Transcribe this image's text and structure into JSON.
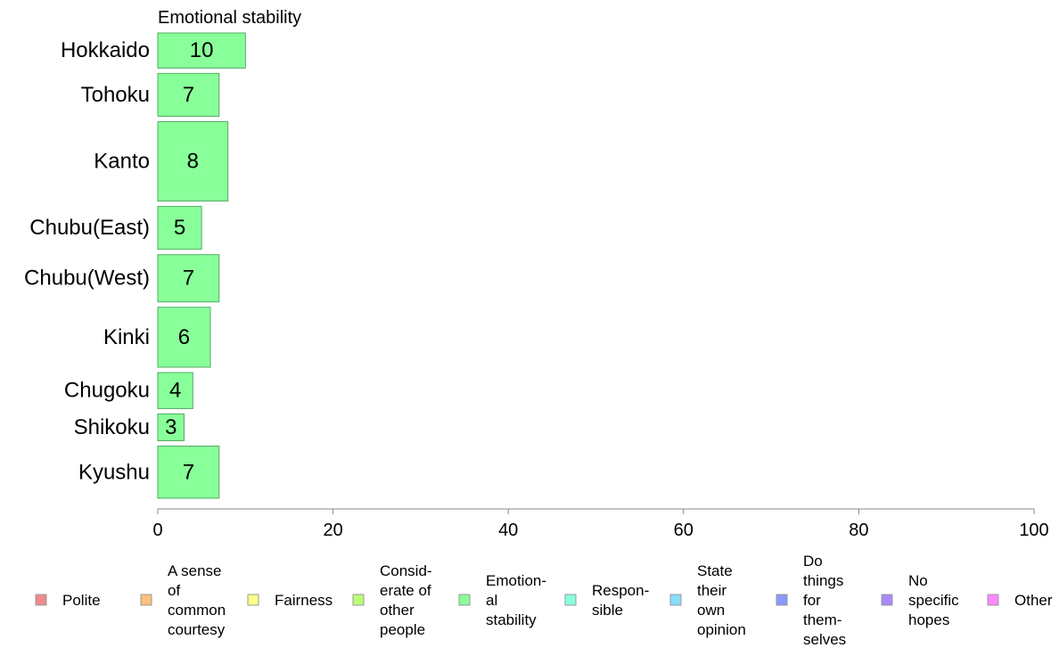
{
  "chart_data": {
    "type": "bar",
    "orientation": "horizontal",
    "title": "Emotional stability",
    "categories": [
      "Hokkaido",
      "Tohoku",
      "Kanto",
      "Chubu(East)",
      "Chubu(West)",
      "Kinki",
      "Chugoku",
      "Shikoku",
      "Kyushu"
    ],
    "values": [
      10,
      7,
      8,
      5,
      7,
      6,
      4,
      3,
      7
    ],
    "bar_relative_weights": [
      0.72,
      0.88,
      1.63,
      0.88,
      0.97,
      1.23,
      0.74,
      0.55,
      1.07
    ],
    "bar_color": "#88FF99",
    "bar_edge_color": "#55AA66",
    "xlim": [
      0,
      100
    ],
    "xticks": [
      "0",
      "20",
      "40",
      "60",
      "80",
      "100"
    ],
    "legend": {
      "placement": "bottom",
      "items": [
        {
          "label": "Polite",
          "color": "#F28A8A"
        },
        {
          "label": "A sense\nof\ncommon\ncourtesy",
          "color": "#FFC080"
        },
        {
          "label": "Fairness",
          "color": "#FFFF88"
        },
        {
          "label": "Consid-\nerate of\nother\npeople",
          "color": "#BBFF77"
        },
        {
          "label": "Emotion-\nal\nstability",
          "color": "#88FF99"
        },
        {
          "label": "Respon-\nsible",
          "color": "#88FFDD"
        },
        {
          "label": "State\ntheir\nown\nopinion",
          "color": "#88DDFF"
        },
        {
          "label": "Do\nthings\nfor\nthem-\nselves",
          "color": "#8899FF"
        },
        {
          "label": "No\nspecific\nhopes",
          "color": "#AA88FF"
        },
        {
          "label": "Other",
          "color": "#FF88FF"
        }
      ]
    }
  }
}
